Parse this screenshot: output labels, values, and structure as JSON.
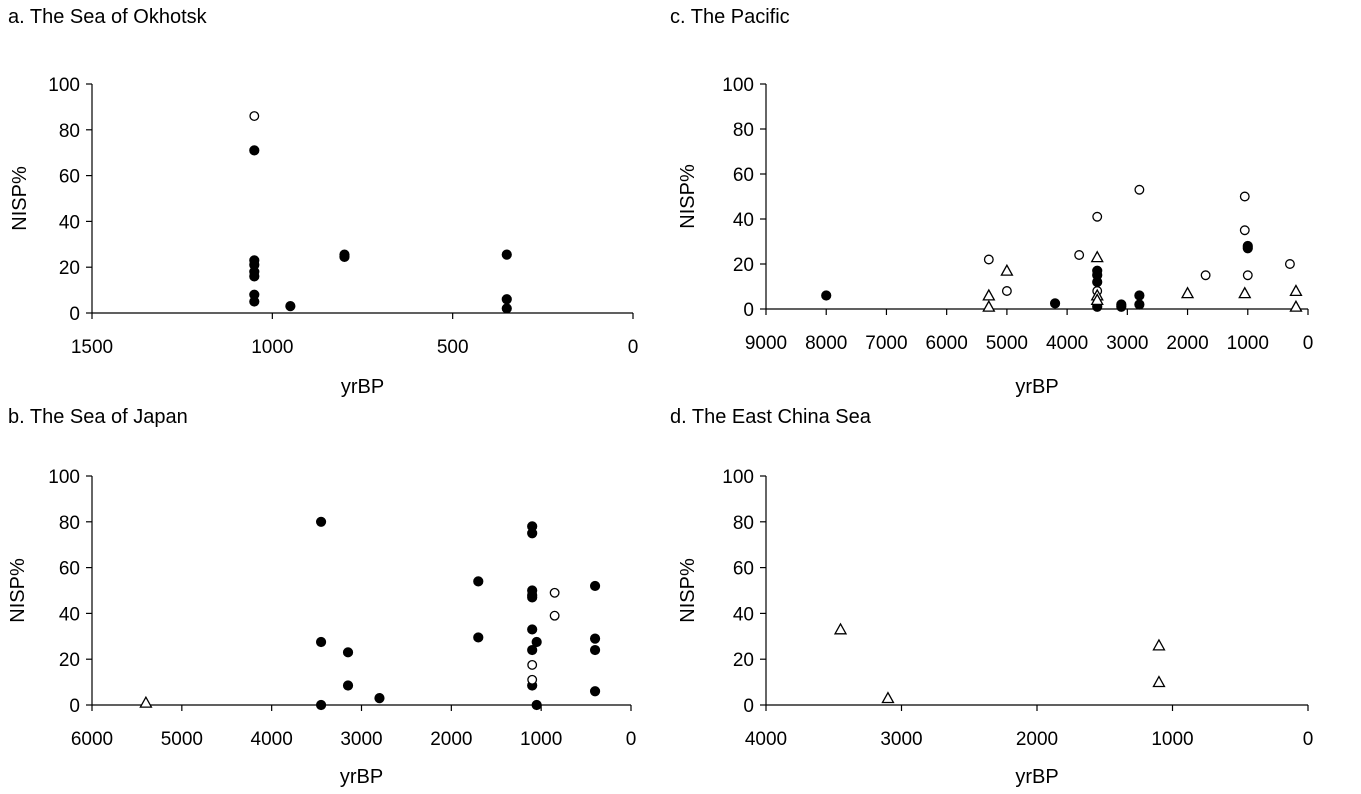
{
  "chart_data": [
    {
      "id": "a",
      "type": "scatter",
      "title": "a. The Sea of Okhotsk",
      "xlabel": "yrBP",
      "ylabel": "NISP%",
      "xlim": [
        1500,
        0
      ],
      "ylim": [
        0,
        100
      ],
      "x_reversed": true,
      "xticks": [
        1500,
        1000,
        500,
        0
      ],
      "xtick_labels": [
        "1500",
        "1000",
        "500",
        "0"
      ],
      "yticks": [
        0,
        20,
        40,
        60,
        80,
        100
      ],
      "ytick_labels": [
        "0",
        "20",
        "40",
        "60",
        "80",
        "100"
      ],
      "grid": false,
      "series": [
        {
          "marker": "filled-circle",
          "points": [
            [
              1050,
              71
            ],
            [
              1050,
              23
            ],
            [
              1050,
              21
            ],
            [
              1050,
              18
            ],
            [
              1050,
              16
            ],
            [
              1050,
              8
            ],
            [
              1050,
              5
            ],
            [
              950,
              3
            ],
            [
              800,
              25.5
            ],
            [
              800,
              24.5
            ],
            [
              350,
              25.5
            ],
            [
              350,
              6
            ],
            [
              350,
              2
            ]
          ]
        },
        {
          "marker": "open-circle",
          "points": [
            [
              1050,
              86
            ]
          ]
        }
      ]
    },
    {
      "id": "c",
      "type": "scatter",
      "title": "c. The Pacific",
      "xlabel": "yrBP",
      "ylabel": "NISP%",
      "xlim": [
        9000,
        0
      ],
      "ylim": [
        0,
        100
      ],
      "x_reversed": true,
      "xticks": [
        9000,
        8000,
        7000,
        6000,
        5000,
        4000,
        3000,
        2000,
        1000,
        0
      ],
      "xtick_labels": [
        "9000",
        "8000",
        "7000",
        "6000",
        "5000",
        "4000",
        "3000",
        "2000",
        "1000",
        "0"
      ],
      "yticks": [
        0,
        20,
        40,
        60,
        80,
        100
      ],
      "ytick_labels": [
        "0",
        "20",
        "40",
        "60",
        "80",
        "100"
      ],
      "grid": false,
      "series": [
        {
          "marker": "filled-circle",
          "points": [
            [
              8000,
              6
            ],
            [
              4200,
              2.5
            ],
            [
              3500,
              17
            ],
            [
              3500,
              15
            ],
            [
              3500,
              12
            ],
            [
              3500,
              1
            ],
            [
              3100,
              2
            ],
            [
              3100,
              1
            ],
            [
              2800,
              6
            ],
            [
              2800,
              2
            ],
            [
              1000,
              28
            ],
            [
              1000,
              27
            ]
          ]
        },
        {
          "marker": "open-circle",
          "points": [
            [
              5300,
              22
            ],
            [
              5000,
              8
            ],
            [
              3800,
              24
            ],
            [
              3500,
              41
            ],
            [
              3500,
              8
            ],
            [
              2800,
              53
            ],
            [
              1700,
              15
            ],
            [
              1050,
              50
            ],
            [
              1050,
              35
            ],
            [
              1000,
              15
            ],
            [
              300,
              20
            ]
          ]
        },
        {
          "marker": "open-triangle",
          "points": [
            [
              5300,
              6
            ],
            [
              5300,
              1
            ],
            [
              5000,
              17
            ],
            [
              3500,
              23
            ],
            [
              3500,
              6
            ],
            [
              3500,
              4
            ],
            [
              2000,
              7
            ],
            [
              1050,
              7
            ],
            [
              200,
              8
            ],
            [
              200,
              1
            ]
          ]
        }
      ]
    },
    {
      "id": "b",
      "type": "scatter",
      "title": "b. The Sea of Japan",
      "xlabel": "yrBP",
      "ylabel": "NISP%",
      "xlim": [
        6000,
        0
      ],
      "ylim": [
        0,
        100
      ],
      "x_reversed": true,
      "xticks": [
        6000,
        5000,
        4000,
        3000,
        2000,
        1000,
        0
      ],
      "xtick_labels": [
        "6000",
        "5000",
        "4000",
        "3000",
        "2000",
        "1000",
        "0"
      ],
      "yticks": [
        0,
        20,
        40,
        60,
        80,
        100
      ],
      "ytick_labels": [
        "0",
        "20",
        "40",
        "60",
        "80",
        "100"
      ],
      "grid": false,
      "series": [
        {
          "marker": "filled-circle",
          "points": [
            [
              3450,
              80
            ],
            [
              3450,
              27.5
            ],
            [
              3450,
              0
            ],
            [
              3150,
              23
            ],
            [
              3150,
              8.5
            ],
            [
              2800,
              3
            ],
            [
              1700,
              54
            ],
            [
              1700,
              29.5
            ],
            [
              1100,
              78
            ],
            [
              1100,
              75
            ],
            [
              1100,
              50
            ],
            [
              1100,
              48
            ],
            [
              1100,
              47
            ],
            [
              1100,
              33
            ],
            [
              1100,
              24
            ],
            [
              1100,
              8.5
            ],
            [
              1050,
              27.5
            ],
            [
              1050,
              0
            ],
            [
              400,
              52
            ],
            [
              400,
              29
            ],
            [
              400,
              24
            ],
            [
              400,
              6
            ]
          ]
        },
        {
          "marker": "open-circle",
          "points": [
            [
              850,
              49
            ],
            [
              850,
              39
            ],
            [
              1100,
              17.5
            ],
            [
              1100,
              11
            ]
          ]
        },
        {
          "marker": "open-triangle",
          "points": [
            [
              5400,
              1
            ]
          ]
        }
      ]
    },
    {
      "id": "d",
      "type": "scatter",
      "title": "d. The East China Sea",
      "xlabel": "yrBP",
      "ylabel": "NISP%",
      "xlim": [
        4000,
        0
      ],
      "ylim": [
        0,
        100
      ],
      "x_reversed": true,
      "xticks": [
        4000,
        3000,
        2000,
        1000,
        0
      ],
      "xtick_labels": [
        "4000",
        "3000",
        "2000",
        "1000",
        "0"
      ],
      "yticks": [
        0,
        20,
        40,
        60,
        80,
        100
      ],
      "ytick_labels": [
        "0",
        "20",
        "40",
        "60",
        "80",
        "100"
      ],
      "grid": false,
      "series": [
        {
          "marker": "open-triangle",
          "points": [
            [
              3450,
              33
            ],
            [
              3100,
              3
            ],
            [
              1100,
              26
            ],
            [
              1100,
              10
            ]
          ]
        }
      ]
    }
  ]
}
